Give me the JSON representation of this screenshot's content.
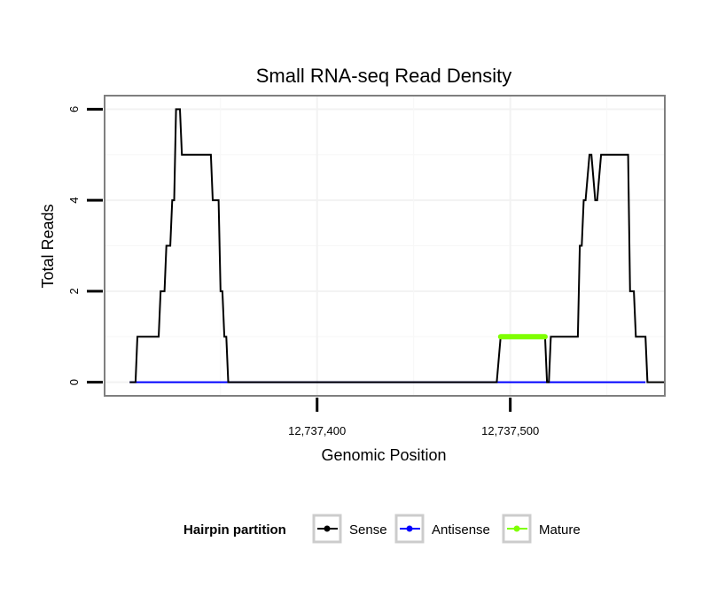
{
  "chart_data": {
    "type": "line",
    "title": "Small RNA-seq Read Density",
    "xlabel": "Genomic Position",
    "ylabel": "Total Reads",
    "xlim": [
      12737290,
      12737580
    ],
    "ylim": [
      -0.3,
      6.3
    ],
    "x_ticks": [
      12737400,
      12737500
    ],
    "x_tick_labels": [
      "12,737,400",
      "12,737,500"
    ],
    "y_ticks": [
      0,
      2,
      4,
      6
    ],
    "y_tick_labels": [
      "0",
      "2",
      "4",
      "6"
    ],
    "grid": true,
    "legend": {
      "title": "Hairpin partition",
      "position": "bottom",
      "entries": [
        {
          "label": "Sense",
          "color": "#000000"
        },
        {
          "label": "Antisense",
          "color": "#0000ff"
        },
        {
          "label": "Mature",
          "color": "#7fff00"
        }
      ]
    },
    "series": [
      {
        "name": "Sense",
        "color": "#000000",
        "x": [
          12737303,
          12737306,
          12737307,
          12737318,
          12737319,
          12737321,
          12737322,
          12737324,
          12737325,
          12737326,
          12737327,
          12737329,
          12737330,
          12737332,
          12737345,
          12737346,
          12737349,
          12737350,
          12737351,
          12737352,
          12737353,
          12737354,
          12737357,
          12737493,
          12737495,
          12737518,
          12737519,
          12737520,
          12737521,
          12737535,
          12737536,
          12737537,
          12737538,
          12737539,
          12737541,
          12737542,
          12737544,
          12737545,
          12737547,
          12737550,
          12737551,
          12737561,
          12737562,
          12737564,
          12737565,
          12737570,
          12737571,
          12737580
        ],
        "y": [
          0,
          0,
          1,
          1,
          2,
          2,
          3,
          3,
          4,
          4,
          6,
          6,
          5,
          5,
          5,
          4,
          4,
          2,
          2,
          1,
          1,
          0,
          0,
          0,
          1,
          1,
          0,
          0,
          1,
          1,
          3,
          3,
          4,
          4,
          5,
          5,
          4,
          4,
          5,
          5,
          5,
          5,
          2,
          2,
          1,
          1,
          0,
          0
        ]
      },
      {
        "name": "Antisense",
        "color": "#0000ff",
        "x": [
          12737303,
          12737570
        ],
        "y": [
          0,
          0
        ]
      },
      {
        "name": "Mature",
        "color": "#7fff00",
        "x": [
          12737495,
          12737518
        ],
        "y": [
          1,
          1
        ]
      }
    ]
  }
}
